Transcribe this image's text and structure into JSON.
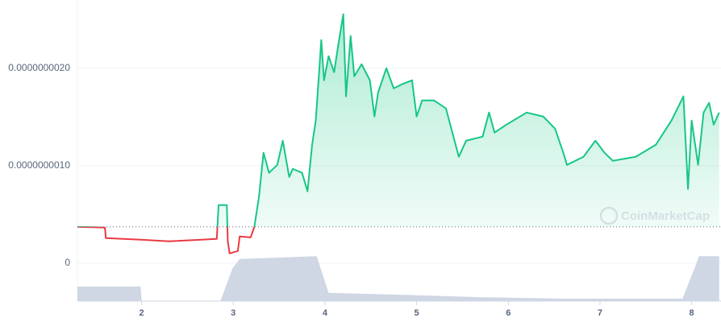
{
  "chart_data": {
    "type": "line",
    "watermark": "CoinMarketCap",
    "xlim": [
      1.3,
      8.32
    ],
    "xticks": [
      2,
      3,
      4,
      5,
      6,
      7,
      8
    ],
    "ylim": [
      -3.9e-10,
      2.7e-09
    ],
    "yticks": [
      0,
      {
        "value": 1e-09,
        "label": "0.0000000010"
      },
      {
        "value": 2e-09,
        "label": "0.0000000020"
      }
    ],
    "y2lim": [
      0,
      100
    ],
    "grid": true,
    "baseline": 3.72e-10,
    "up_color": "#16c784",
    "down_color": "#ea3943",
    "series": [
      {
        "name": "Price",
        "color": "#16c784",
        "x": [
          1.3,
          1.6,
          1.61,
          1.99,
          2.3,
          2.82,
          2.84,
          2.93,
          2.94,
          2.96,
          3.05,
          3.07,
          3.19,
          3.23,
          3.28,
          3.33,
          3.39,
          3.48,
          3.54,
          3.61,
          3.65,
          3.75,
          3.81,
          3.86,
          3.9,
          3.96,
          3.99,
          4.04,
          4.1,
          4.14,
          4.2,
          4.23,
          4.28,
          4.32,
          4.4,
          4.49,
          4.54,
          4.58,
          4.67,
          4.75,
          4.84,
          4.95,
          5.0,
          5.06,
          5.19,
          5.32,
          5.39,
          5.46,
          5.54,
          5.72,
          5.79,
          5.85,
          5.98,
          6.2,
          6.38,
          6.51,
          6.6,
          6.64,
          6.82,
          6.95,
          7.05,
          7.14,
          7.39,
          7.61,
          7.78,
          7.91,
          7.96,
          8.0,
          8.07,
          8.13,
          8.19,
          8.24,
          8.3
        ],
        "values": [
          3.72e-10,
          3.64e-10,
          2.56e-10,
          2.4e-10,
          2.23e-10,
          2.48e-10,
          5.95e-10,
          5.95e-10,
          2.23e-10,
          9.9e-11,
          1.24e-10,
          2.73e-10,
          2.64e-10,
          3.72e-10,
          6.78e-10,
          1.132e-09,
          9.26e-10,
          1.008e-09,
          1.256e-09,
          8.84e-10,
          9.67e-10,
          9.26e-10,
          7.36e-10,
          1.215e-09,
          1.463e-09,
          2.289e-09,
          1.876e-09,
          2.124e-09,
          1.959e-09,
          2.207e-09,
          2.554e-09,
          1.711e-09,
          2.331e-09,
          1.917e-09,
          2.041e-09,
          1.876e-09,
          1.504e-09,
          1.752e-09,
          2e-09,
          1.793e-09,
          1.835e-09,
          1.876e-09,
          1.504e-09,
          1.669e-09,
          1.669e-09,
          1.587e-09,
          1.339e-09,
          1.091e-09,
          1.256e-09,
          1.298e-09,
          1.545e-09,
          1.339e-09,
          1.421e-09,
          1.545e-09,
          1.504e-09,
          1.38e-09,
          1.132e-09,
          1.008e-09,
          1.091e-09,
          1.256e-09,
          1.132e-09,
          1.05e-09,
          1.091e-09,
          1.215e-09,
          1.463e-09,
          1.711e-09,
          7.6e-10,
          1.463e-09,
          1.008e-09,
          1.545e-09,
          1.645e-09,
          1.421e-09,
          1.545e-09
        ]
      },
      {
        "name": "Volume",
        "color": "#cfd6e4",
        "axis": "y2",
        "x": [
          1.3,
          1.99,
          2.0,
          2.86,
          2.99,
          3.07,
          3.91,
          4.04,
          4.84,
          5.71,
          6.59,
          7.9,
          8.03,
          8.08,
          8.3
        ],
        "values": [
          30,
          30,
          0,
          0,
          67,
          87,
          93,
          17,
          13,
          8,
          5,
          5,
          67,
          93,
          93
        ]
      }
    ]
  }
}
